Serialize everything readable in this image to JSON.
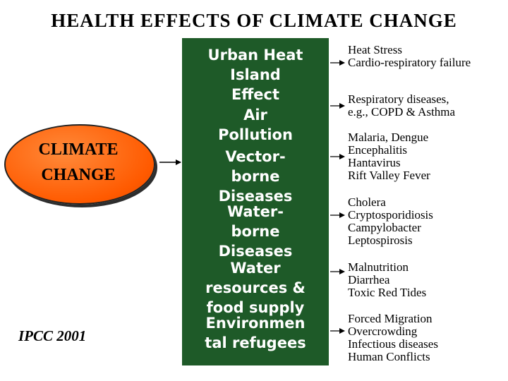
{
  "title": "HEALTH EFFECTS OF CLIMATE CHANGE",
  "source": {
    "line1": "CLIMATE",
    "line2": "CHANGE"
  },
  "pathways": [
    {
      "cause": [
        "Urban Heat",
        "Island",
        "Effect"
      ],
      "effects": [
        "Heat Stress",
        "Cardio-respiratory failure"
      ]
    },
    {
      "cause": [
        "Air",
        "Pollution"
      ],
      "effects": [
        "Respiratory diseases,",
        "e.g., COPD & Asthma"
      ]
    },
    {
      "cause": [
        "Vector-",
        "borne",
        "Diseases"
      ],
      "effects": [
        "Malaria, Dengue",
        "Encephalitis",
        "Hantavirus",
        "Rift Valley Fever"
      ]
    },
    {
      "cause": [
        "Water-",
        "borne",
        "Diseases"
      ],
      "effects": [
        "Cholera",
        "Cryptosporidiosis",
        "Campylobacter",
        "Leptospirosis"
      ]
    },
    {
      "cause": [
        "Water",
        "resources &",
        "food supply"
      ],
      "effects": [
        "Malnutrition",
        "Diarrhea",
        "Toxic Red Tides"
      ]
    },
    {
      "cause": [
        "Environmen",
        "tal refugees"
      ],
      "effects": [
        "Forced Migration",
        "Overcrowding",
        "Infectious diseases",
        "Human Conflicts"
      ]
    }
  ],
  "credit": "IPCC 2001",
  "colors": {
    "box_green": "#1e5a28",
    "oval_orange": "#ff5a00"
  }
}
